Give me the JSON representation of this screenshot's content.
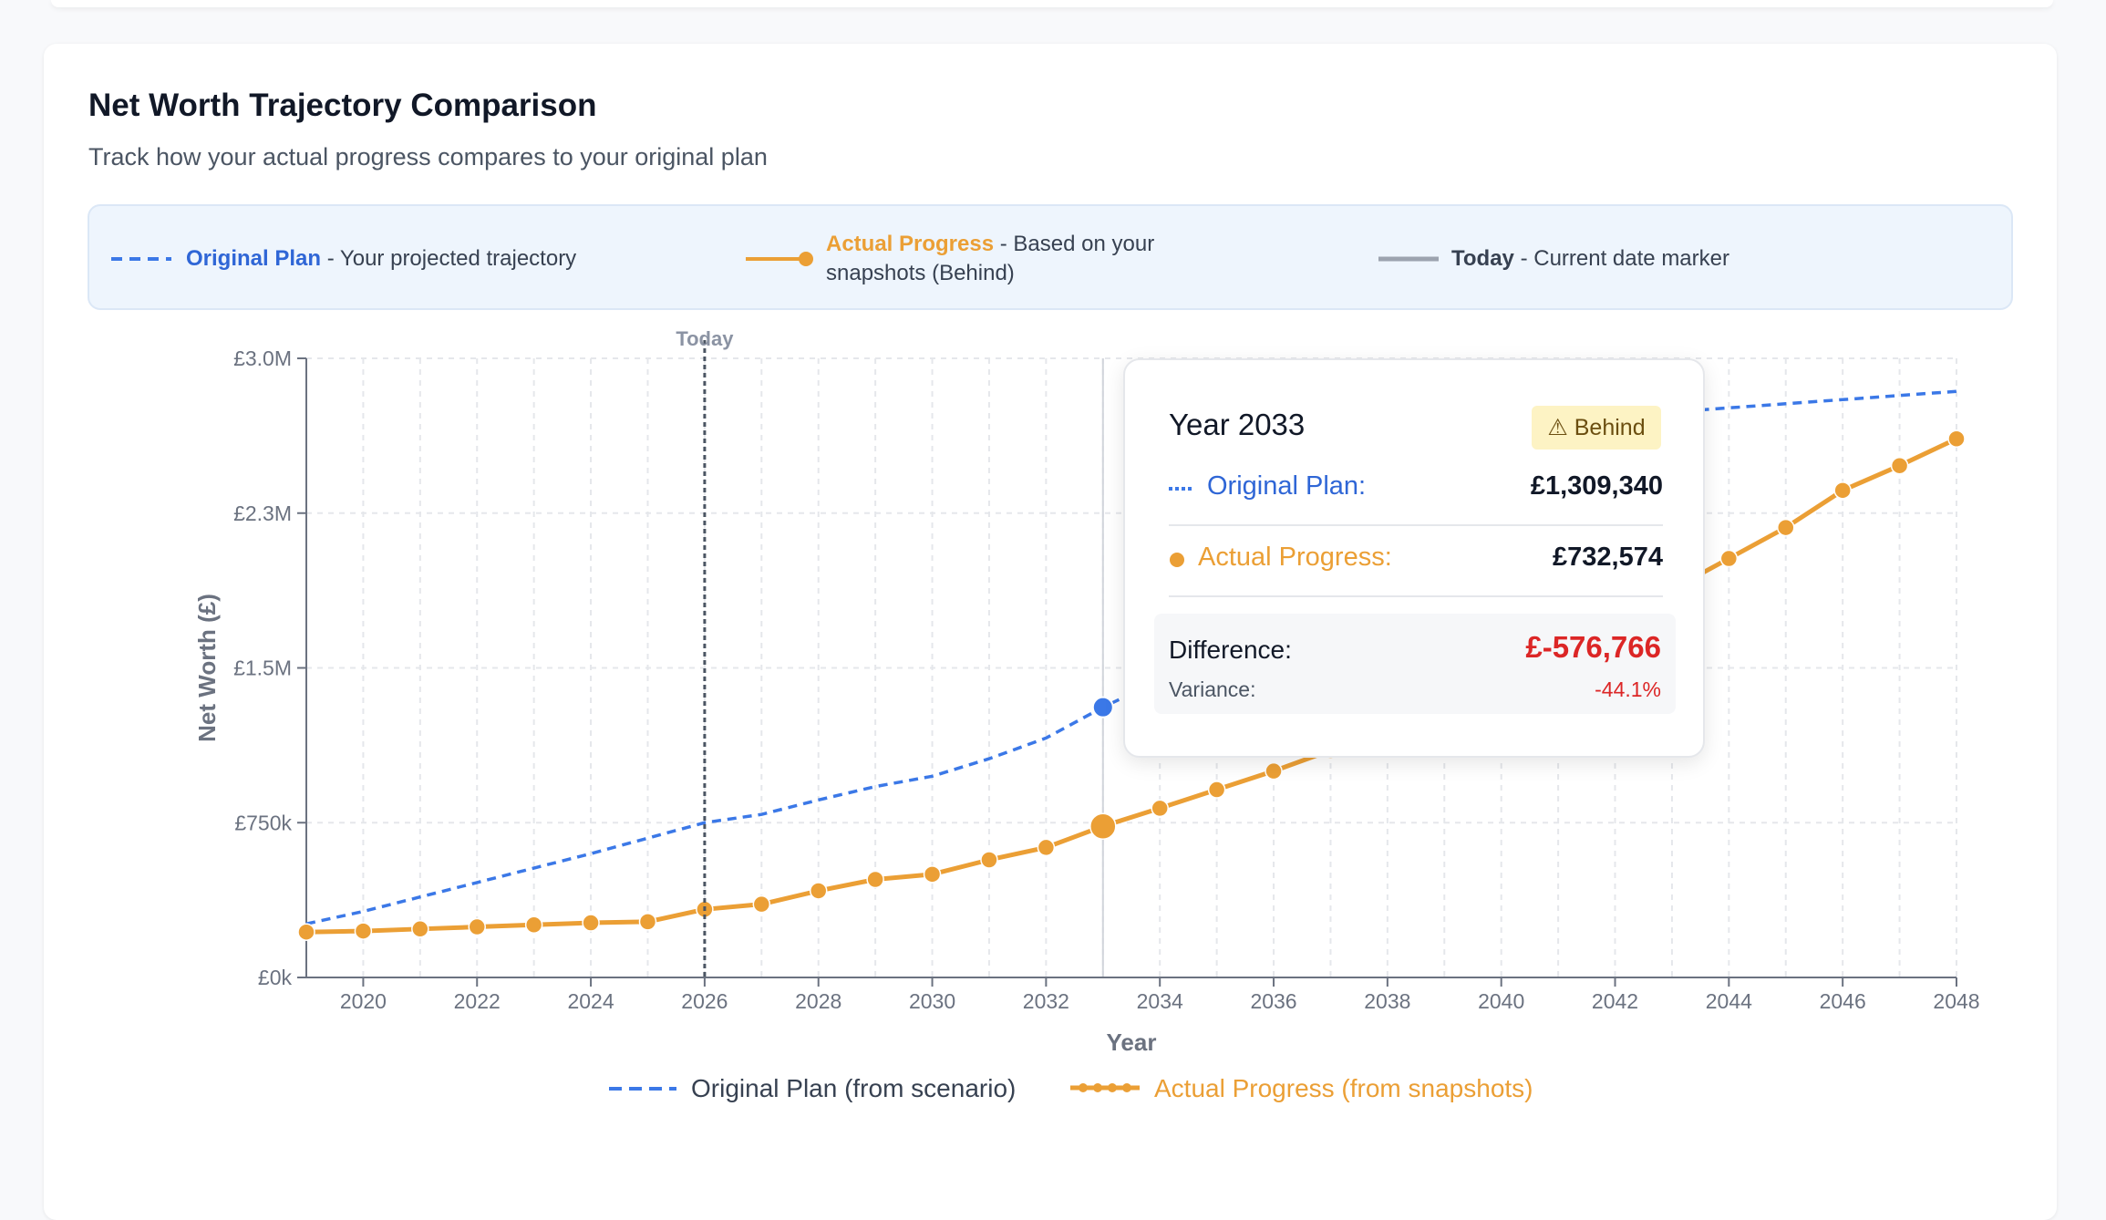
{
  "header": {
    "title": "Net Worth Trajectory Comparison",
    "subtitle": "Track how your actual progress compares to your original plan"
  },
  "legend_panel": {
    "plan_label": "Original Plan",
    "plan_desc": "- Your projected trajectory",
    "actual_label": "Actual Progress",
    "actual_desc": "- Based on your",
    "actual_desc2": "snapshots (Behind)",
    "today_label": "Today",
    "today_desc": "- Current date marker"
  },
  "tooltip": {
    "year": "Year 2033",
    "badge": "⚠ Behind",
    "plan_label": "Original Plan:",
    "plan_value": "£1,309,340",
    "actual_label": "Actual Progress:",
    "actual_value": "£732,574",
    "diff_label": "Difference:",
    "diff_value": "£-576,766",
    "variance_label": "Variance:",
    "variance_value": "-44.1%"
  },
  "bottom_legend": {
    "plan": "Original Plan (from scenario)",
    "actual": "Actual Progress (from snapshots)"
  },
  "colors": {
    "plan": "#3b78e7",
    "actual": "#eb9f35",
    "today": "#6b7280",
    "danger": "#dc2626"
  },
  "chart_data": {
    "type": "line",
    "xlabel": "Year",
    "ylabel": "Net Worth (£)",
    "xlim": [
      2019,
      2048
    ],
    "ylim": [
      0,
      3000000
    ],
    "xticks": [
      2020,
      2022,
      2024,
      2026,
      2028,
      2030,
      2032,
      2034,
      2036,
      2038,
      2040,
      2042,
      2044,
      2046,
      2048
    ],
    "yticks": [
      0,
      750000,
      1500000,
      2250000,
      3000000
    ],
    "ytick_labels": [
      "£0k",
      "£750k",
      "£1.5M",
      "£2.3M",
      "£3.0M"
    ],
    "today_marker": {
      "x": 2026,
      "label": "Today"
    },
    "hover_x": 2033,
    "grid": true,
    "series": [
      {
        "name": "Original Plan (from scenario)",
        "style": "dashed",
        "x": [
          2019,
          2020,
          2021,
          2022,
          2023,
          2024,
          2025,
          2026,
          2027,
          2028,
          2029,
          2030,
          2031,
          2032,
          2033,
          2034,
          2035,
          2036,
          2037,
          2038,
          2039,
          2040,
          2041,
          2042,
          2043,
          2044,
          2045,
          2046,
          2047,
          2048
        ],
        "values": [
          260000,
          320000,
          390000,
          460000,
          530000,
          600000,
          675000,
          750000,
          790000,
          860000,
          925000,
          975000,
          1060000,
          1160000,
          1309340,
          1440000,
          1620000,
          1800000,
          1980000,
          2160000,
          2330000,
          2490000,
          2620000,
          2700000,
          2740000,
          2760000,
          2780000,
          2800000,
          2820000,
          2840000
        ]
      },
      {
        "name": "Actual Progress (from snapshots)",
        "style": "solid-markers",
        "x": [
          2019,
          2020,
          2021,
          2022,
          2023,
          2024,
          2025,
          2026,
          2027,
          2028,
          2029,
          2030,
          2031,
          2032,
          2033,
          2034,
          2035,
          2036,
          2037,
          2038,
          2039,
          2040,
          2041,
          2042,
          2043,
          2044,
          2045,
          2046,
          2047,
          2048
        ],
        "values": [
          220000,
          225000,
          235000,
          245000,
          255000,
          265000,
          270000,
          330000,
          355000,
          420000,
          475000,
          500000,
          570000,
          630000,
          732574,
          820000,
          910000,
          1000000,
          1100000,
          1200000,
          1320000,
          1450000,
          1580000,
          1730000,
          1880000,
          2030000,
          2180000,
          2360000,
          2480000,
          2610000
        ]
      }
    ]
  }
}
